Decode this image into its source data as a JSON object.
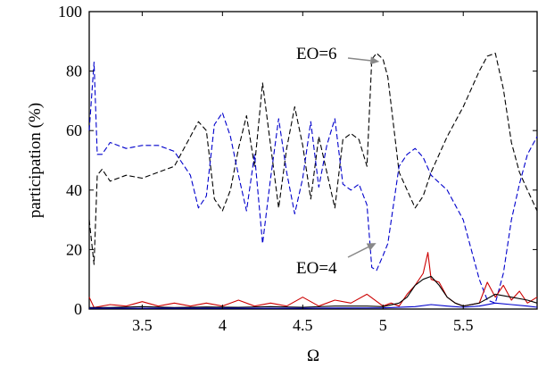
{
  "chart_data": {
    "type": "line",
    "xlabel": "Ω",
    "ylabel": "participation (%)",
    "xlim": [
      3.17,
      5.96
    ],
    "ylim": [
      0,
      100
    ],
    "xticks": [
      3.5,
      4,
      4.5,
      5,
      5.5
    ],
    "xtick_labels": [
      "3.5",
      "4",
      "4.5",
      "5",
      "5.5"
    ],
    "yticks": [
      0,
      20,
      40,
      60,
      80,
      100
    ],
    "ytick_labels": [
      "0",
      "20",
      "40",
      "60",
      "80",
      "100"
    ],
    "grid": false,
    "annotations": [
      {
        "text": "EO=6",
        "x": 5.0,
        "y": 85
      },
      {
        "text": "EO=4",
        "x": 4.98,
        "y": 21
      }
    ],
    "series": [
      {
        "color": "#000000",
        "dash": "dashed",
        "x": [
          3.17,
          3.2,
          3.22,
          3.25,
          3.3,
          3.4,
          3.5,
          3.6,
          3.7,
          3.8,
          3.85,
          3.9,
          3.95,
          4.0,
          4.05,
          4.1,
          4.15,
          4.2,
          4.25,
          4.3,
          4.35,
          4.4,
          4.45,
          4.5,
          4.55,
          4.6,
          4.65,
          4.7,
          4.75,
          4.8,
          4.85,
          4.9,
          4.93,
          4.96,
          5.0,
          5.03,
          5.1,
          5.15,
          5.2,
          5.25,
          5.3,
          5.4,
          5.5,
          5.6,
          5.65,
          5.7,
          5.75,
          5.8,
          5.85,
          5.9,
          5.96
        ],
        "y": [
          30,
          15,
          45,
          47,
          43,
          45,
          44,
          46,
          48,
          58,
          63,
          60,
          37,
          33,
          40,
          54,
          65,
          48,
          76,
          55,
          34,
          54,
          68,
          55,
          37,
          58,
          46,
          34,
          57,
          59,
          57,
          48,
          84,
          86,
          84,
          78,
          46,
          40,
          34,
          38,
          46,
          58,
          68,
          80,
          85,
          86,
          74,
          56,
          46,
          40,
          33
        ]
      },
      {
        "color": "#0000cc",
        "dash": "dashed",
        "x": [
          3.17,
          3.2,
          3.22,
          3.25,
          3.3,
          3.4,
          3.5,
          3.6,
          3.7,
          3.8,
          3.85,
          3.9,
          3.95,
          4.0,
          4.05,
          4.1,
          4.15,
          4.2,
          4.25,
          4.3,
          4.35,
          4.4,
          4.45,
          4.5,
          4.55,
          4.6,
          4.65,
          4.7,
          4.75,
          4.8,
          4.85,
          4.9,
          4.93,
          4.96,
          5.0,
          5.03,
          5.1,
          5.15,
          5.2,
          5.25,
          5.3,
          5.4,
          5.5,
          5.6,
          5.65,
          5.7,
          5.75,
          5.8,
          5.85,
          5.9,
          5.96
        ],
        "y": [
          60,
          83,
          52,
          52,
          56,
          54,
          55,
          55,
          53,
          45,
          34,
          38,
          62,
          66,
          58,
          45,
          33,
          52,
          22,
          44,
          64,
          46,
          32,
          44,
          63,
          41,
          55,
          64,
          42,
          40,
          42,
          35,
          14,
          13,
          18,
          22,
          48,
          52,
          54,
          51,
          45,
          40,
          30,
          10,
          3,
          2,
          12,
          30,
          42,
          52,
          58
        ]
      },
      {
        "color": "#cc0000",
        "dash": "solid",
        "x": [
          3.17,
          3.2,
          3.3,
          3.4,
          3.5,
          3.6,
          3.7,
          3.8,
          3.9,
          4.0,
          4.1,
          4.2,
          4.3,
          4.4,
          4.5,
          4.6,
          4.7,
          4.8,
          4.9,
          5.0,
          5.05,
          5.1,
          5.15,
          5.2,
          5.25,
          5.28,
          5.3,
          5.35,
          5.4,
          5.45,
          5.5,
          5.6,
          5.65,
          5.7,
          5.75,
          5.8,
          5.85,
          5.9,
          5.96
        ],
        "y": [
          4,
          0.5,
          1.5,
          1,
          2.5,
          1,
          2,
          1,
          2,
          1,
          3,
          1,
          2,
          1,
          4,
          1,
          3,
          2,
          5,
          1,
          2,
          1,
          5,
          8,
          12,
          19,
          10,
          9,
          4,
          2,
          1,
          2,
          9,
          4,
          8,
          3,
          6,
          2,
          4
        ]
      },
      {
        "color": "#000000",
        "dash": "solid",
        "x": [
          3.17,
          3.3,
          3.5,
          3.7,
          3.9,
          4.1,
          4.3,
          4.5,
          4.7,
          4.9,
          5.0,
          5.1,
          5.15,
          5.2,
          5.25,
          5.3,
          5.35,
          5.4,
          5.45,
          5.5,
          5.6,
          5.7,
          5.8,
          5.9,
          5.96
        ],
        "y": [
          0.5,
          0.5,
          0.8,
          0.5,
          0.7,
          0.6,
          0.8,
          0.6,
          1,
          1,
          0.8,
          2,
          4,
          8,
          10,
          11,
          8,
          4,
          2,
          1,
          2,
          5,
          4,
          3,
          2
        ]
      },
      {
        "color": "#0000cc",
        "dash": "solid",
        "x": [
          3.17,
          3.5,
          4.0,
          4.5,
          5.0,
          5.2,
          5.3,
          5.4,
          5.5,
          5.6,
          5.7,
          5.8,
          5.9,
          5.96
        ],
        "y": [
          0.3,
          0.3,
          0.3,
          0.3,
          0.4,
          0.8,
          1.5,
          1,
          0.6,
          1,
          2,
          1.5,
          1,
          0.6
        ]
      }
    ]
  }
}
